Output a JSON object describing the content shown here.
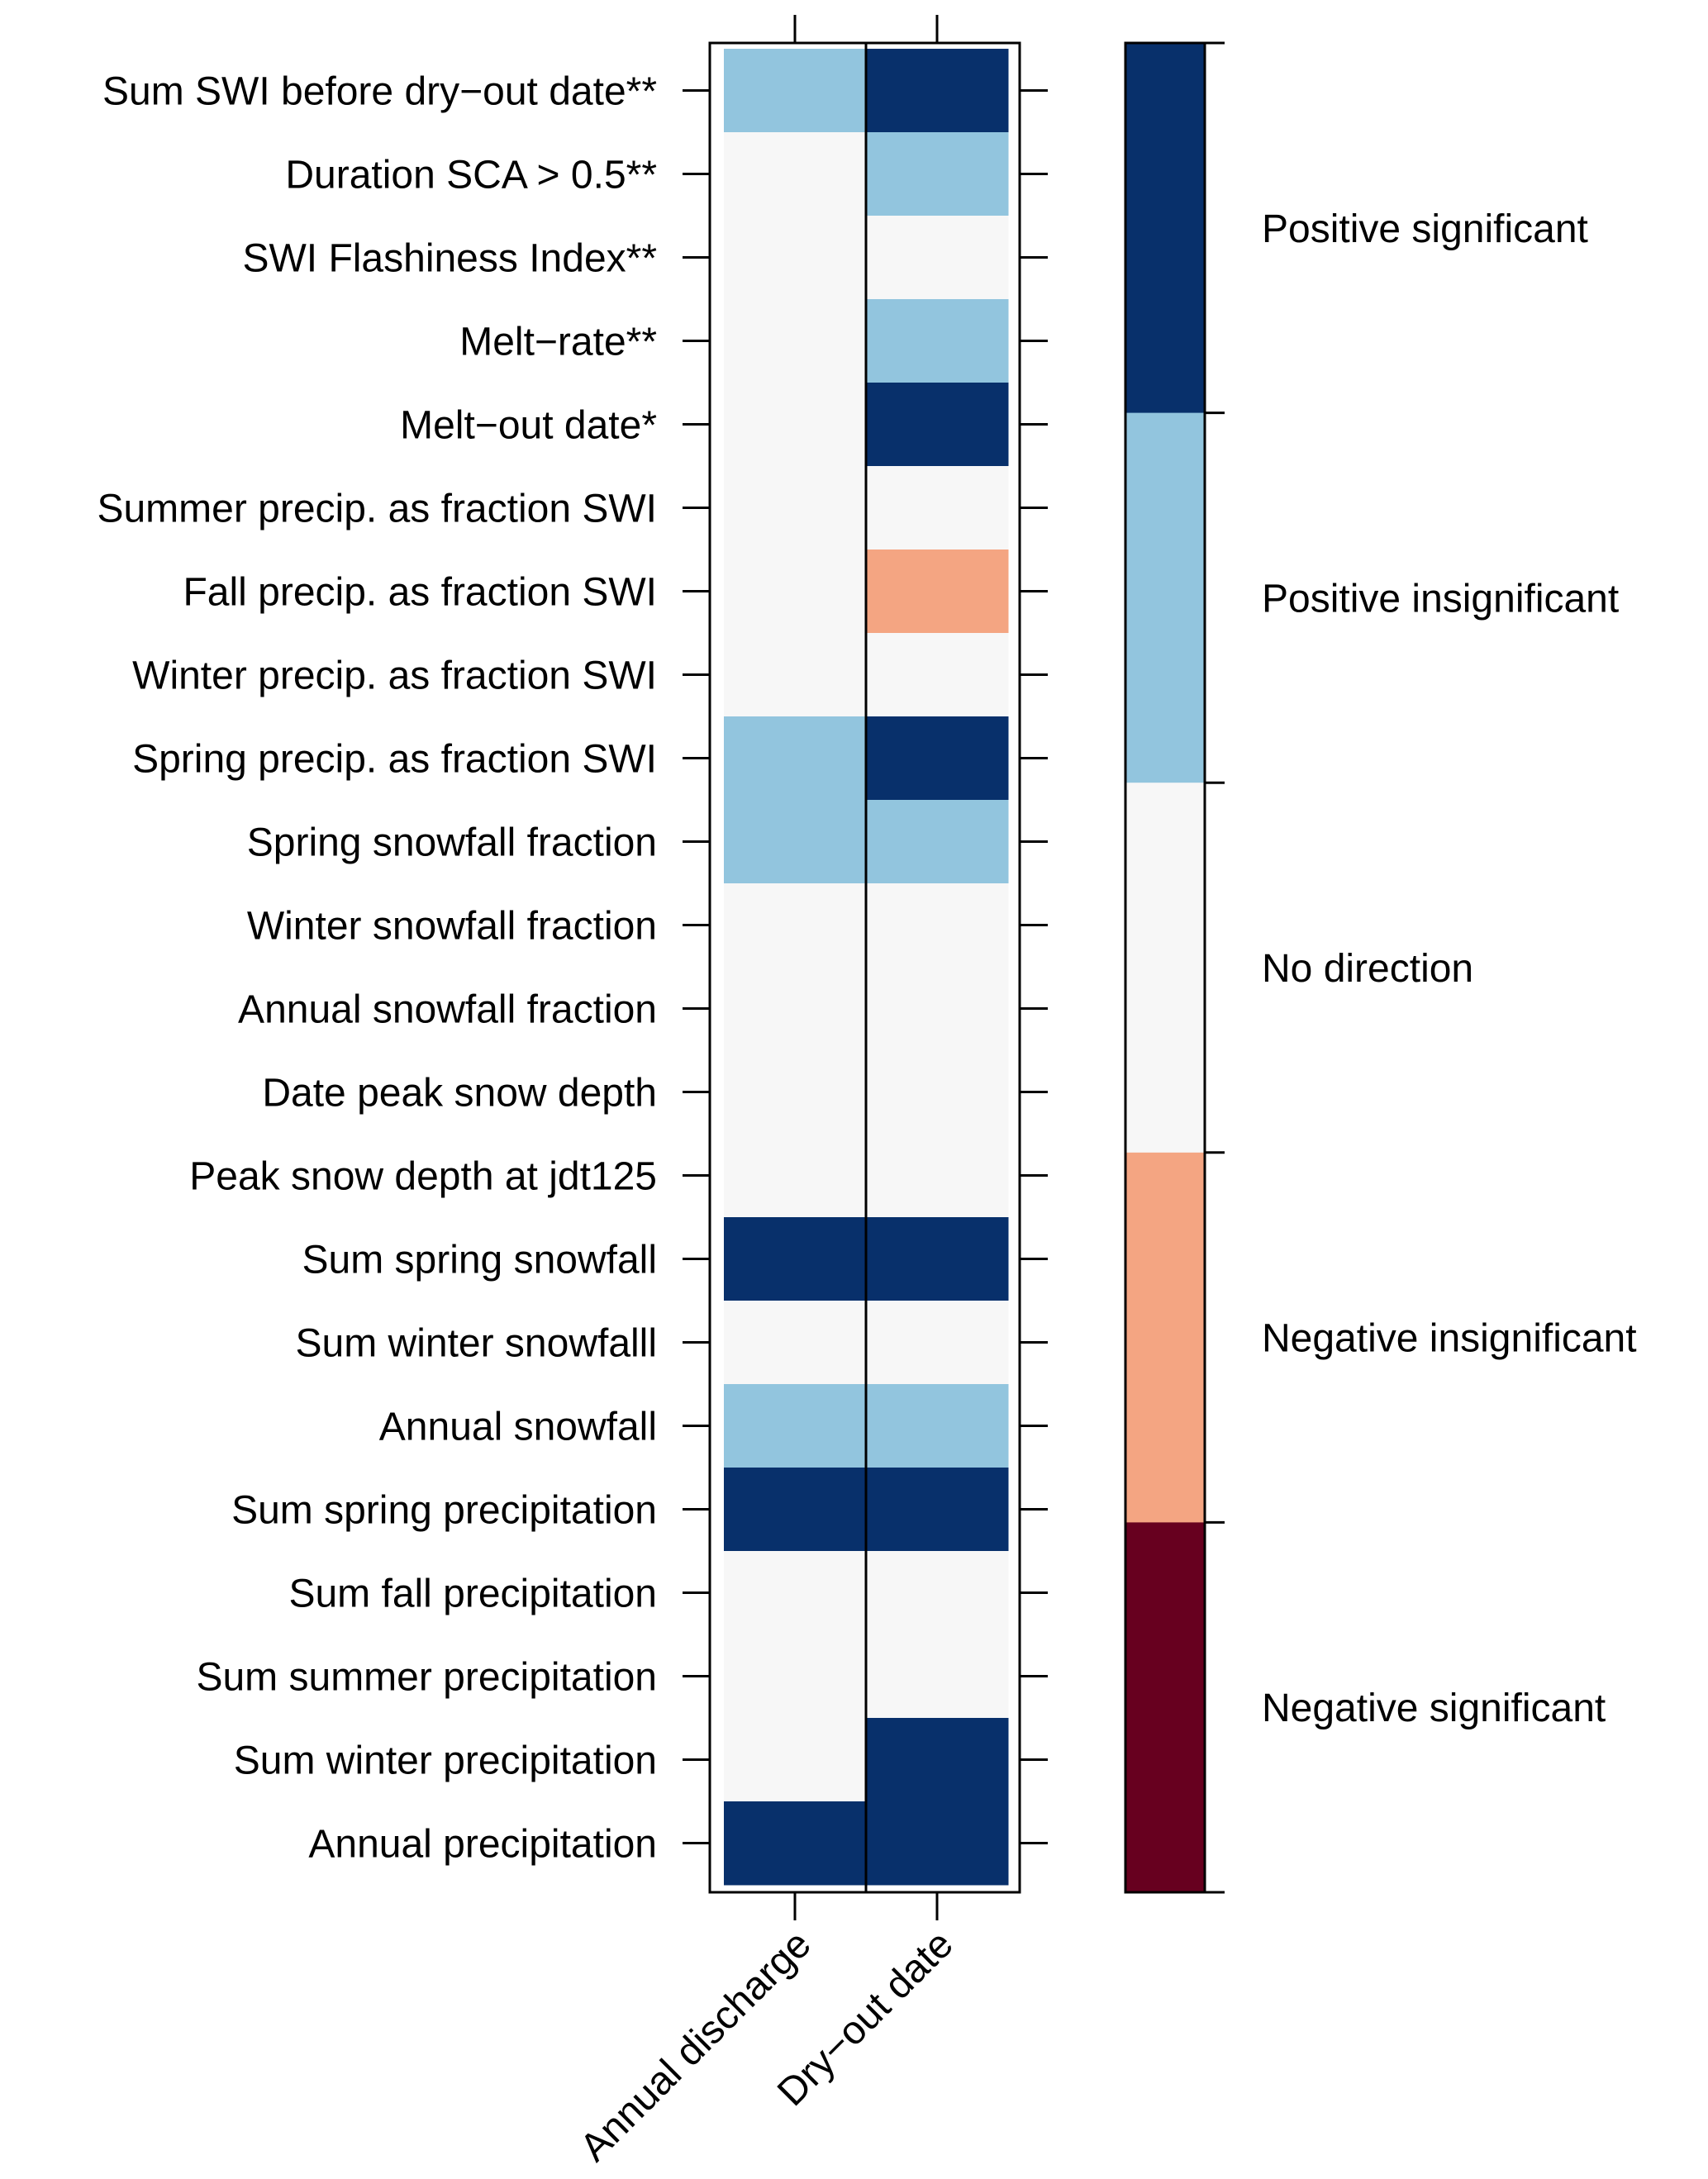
{
  "chart_data": {
    "type": "heatmap",
    "title": "",
    "xlabel": "",
    "ylabel": "",
    "columns": [
      "Annual discharge",
      "Dry−out date"
    ],
    "rows": [
      "Sum SWI before dry−out date**",
      "Duration SCA > 0.5**",
      "SWI Flashiness Index**",
      "Melt−rate**",
      "Melt−out date*",
      "Summer precip. as fraction SWI",
      "Fall precip. as fraction SWI",
      "Winter precip. as fraction SWI",
      "Spring precip. as fraction SWI",
      "Spring snowfall fraction",
      "Winter snowfall fraction",
      "Annual snowfall fraction",
      "Date peak snow depth",
      "Peak snow depth at jdt125",
      "Sum spring snowfall",
      "Sum winter snowfalll",
      "Annual snowfall",
      "Sum spring precipitation",
      "Sum fall precipitation",
      "Sum summer precipitation",
      "Sum winter precipitation",
      "Annual precipitation"
    ],
    "values": [
      [
        1,
        2
      ],
      [
        0,
        1
      ],
      [
        0,
        0
      ],
      [
        0,
        1
      ],
      [
        0,
        2
      ],
      [
        0,
        0
      ],
      [
        0,
        -1
      ],
      [
        0,
        0
      ],
      [
        1,
        2
      ],
      [
        1,
        1
      ],
      [
        0,
        0
      ],
      [
        0,
        0
      ],
      [
        0,
        0
      ],
      [
        0,
        0
      ],
      [
        2,
        2
      ],
      [
        0,
        0
      ],
      [
        1,
        1
      ],
      [
        2,
        2
      ],
      [
        0,
        0
      ],
      [
        0,
        0
      ],
      [
        0,
        2
      ],
      [
        2,
        2
      ]
    ],
    "legend": {
      "placement": "right",
      "items": [
        {
          "value": 2,
          "label": "Positive significant",
          "color": "#08306b"
        },
        {
          "value": 1,
          "label": "Positive insignificant",
          "color": "#92c5de"
        },
        {
          "value": 0,
          "label": "No direction",
          "color": "#f7f7f7"
        },
        {
          "value": -1,
          "label": "Negative insignificant",
          "color": "#f4a582"
        },
        {
          "value": -2,
          "label": "Negative significant",
          "color": "#67001f"
        }
      ]
    }
  }
}
